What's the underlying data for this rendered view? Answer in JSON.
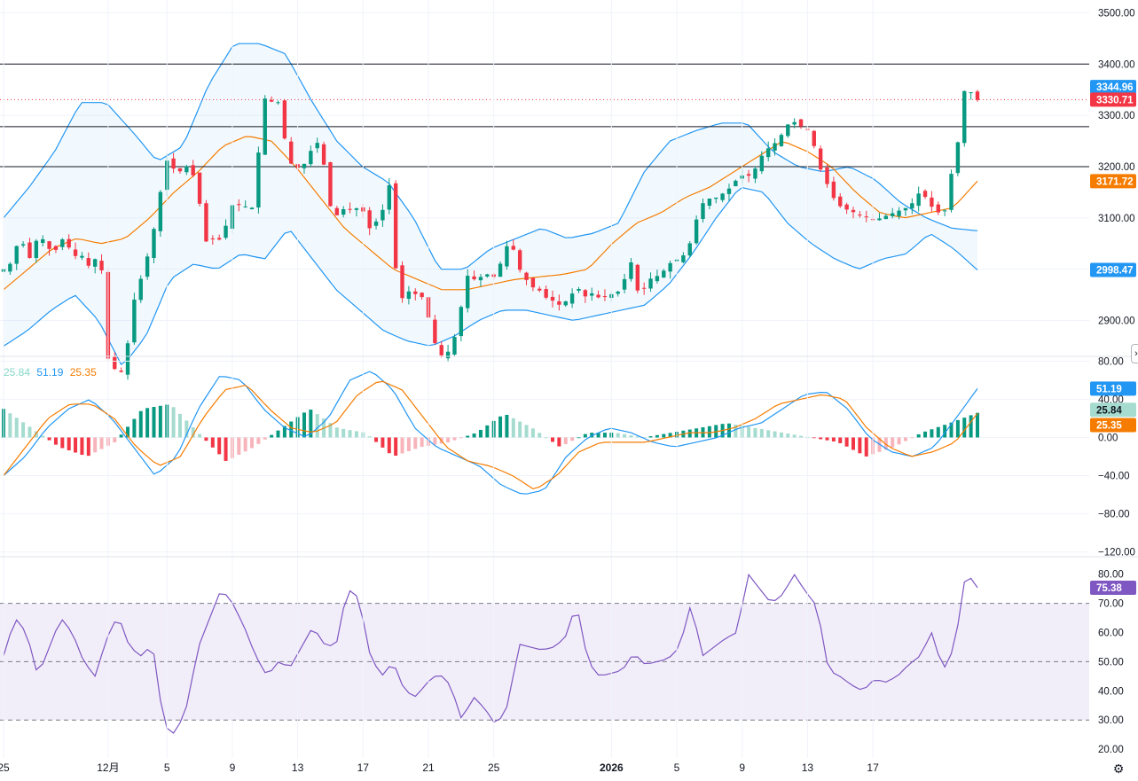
{
  "chart_data": [
    {
      "id": "price",
      "type": "candlestick",
      "ylim": [
        2830,
        3525
      ],
      "y_ticks": [
        "3500.00",
        "3400.00",
        "3300.00",
        "3200.00",
        "3100.00",
        "3000.00",
        "2900.00"
      ],
      "horizontal_lines": [
        3400,
        3278,
        3200
      ],
      "last_price": 3330.71,
      "last_price_label": "3330.71",
      "bollinger": {
        "upper_label": "3344.96",
        "middle_label": "3171.72",
        "lower_label": "2998.47",
        "upper_value": 3344.96,
        "middle_value": 3171.72,
        "lower_value": 2998.47
      },
      "x_tick_labels": [
        {
          "label": "25",
          "index": 0
        },
        {
          "label": "12月",
          "index": 16
        },
        {
          "label": "5",
          "index": 25
        },
        {
          "label": "9",
          "index": 35
        },
        {
          "label": "13",
          "index": 45
        },
        {
          "label": "17",
          "index": 55
        },
        {
          "label": "21",
          "index": 65
        },
        {
          "label": "25",
          "index": 75
        },
        {
          "label": "2026",
          "index": 93
        },
        {
          "label": "5",
          "index": 103
        },
        {
          "label": "9",
          "index": 113
        },
        {
          "label": "13",
          "index": 123
        },
        {
          "label": "17",
          "index": 133
        }
      ],
      "close_path": [
        3000,
        3010,
        3045,
        3050,
        3020,
        3055,
        3060,
        3040,
        3035,
        3060,
        3045,
        3025,
        3030,
        3005,
        3015,
        3040,
        2830,
        2810,
        2790,
        2830,
        2930,
        2970,
        3010,
        3060,
        3120,
        3215,
        3205,
        3180,
        3210,
        3185,
        3180,
        3050,
        3060,
        3060,
        3055,
        3120,
        3130,
        3120,
        3125,
        3115,
        3330,
        3335,
        3320,
        3330,
        3200,
        3210,
        3190,
        3215,
        3240,
        3250,
        3180,
        3095,
        3110,
        3120,
        3115,
        3120,
        3110,
        3070,
        3100,
        3120,
        3175,
        2960,
        2940,
        2960,
        2950,
        2945,
        2900,
        2850,
        2830,
        2840,
        2870,
        2930,
        2990,
        2980,
        2985,
        2990,
        2985,
        3010,
        3045,
        3040,
        3000,
        2980,
        2965,
        2960,
        2945,
        2940,
        2930,
        2935,
        2950,
        2965,
        2945,
        2955,
        2945,
        2945,
        2950,
        2955,
        2960,
        3035,
        2960,
        2955,
        2980,
        2985,
        2990,
        3010,
        3015,
        3025,
        3030,
        3080,
        3120,
        3140,
        3135,
        3145,
        3150,
        3165,
        3180,
        3185,
        3180,
        3210,
        3230,
        3240,
        3250,
        3270,
        3290,
        3285,
        3275,
        3270,
        3225,
        3180,
        3160,
        3130,
        3120,
        3115,
        3110,
        3105,
        3100,
        3095,
        3100,
        3105,
        3110,
        3115,
        3120,
        3130,
        3150,
        3140,
        3120,
        3110,
        3115,
        3190,
        3250,
        3350,
        3345,
        3330
      ],
      "bb_upper_path": [
        3100,
        3160,
        3230,
        3325,
        3325,
        3270,
        3210,
        3240,
        3360,
        3440,
        3440,
        3420,
        3330,
        3250,
        3200,
        3170,
        3100,
        3000,
        3000,
        3040,
        3060,
        3080,
        3060,
        3070,
        3090,
        3190,
        3250,
        3270,
        3285,
        3285,
        3230,
        3200,
        3190,
        3200,
        3175,
        3130,
        3100,
        3080,
        3075
      ],
      "bb_middle_path": [
        2960,
        3000,
        3040,
        3060,
        3050,
        3060,
        3100,
        3150,
        3190,
        3240,
        3260,
        3250,
        3200,
        3140,
        3080,
        3040,
        3000,
        2980,
        2960,
        2960,
        2970,
        2980,
        2985,
        2990,
        3000,
        3050,
        3090,
        3110,
        3140,
        3160,
        3190,
        3220,
        3250,
        3230,
        3200,
        3150,
        3110,
        3100,
        3110,
        3120,
        3171.72
      ],
      "bb_lower_path": [
        2850,
        2880,
        2920,
        2950,
        2900,
        2810,
        2870,
        2980,
        3010,
        3000,
        3030,
        3020,
        3080,
        3020,
        2960,
        2920,
        2880,
        2860,
        2850,
        2870,
        2900,
        2920,
        2920,
        2910,
        2900,
        2910,
        2920,
        2930,
        2970,
        3030,
        3100,
        3160,
        3150,
        3090,
        3050,
        3020,
        3000,
        3020,
        3030,
        3070,
        3040,
        2998.47
      ]
    },
    {
      "id": "macd",
      "type": "macd",
      "ylim": [
        -125,
        85
      ],
      "y_ticks": [
        "80.00",
        "40.00",
        "0.00",
        "−40.00",
        "−80.00",
        "−120.00"
      ],
      "legend_values": [
        "25.84",
        "51.19",
        "25.35"
      ],
      "hist_label": "25.84",
      "macd_label": "51.19",
      "signal_label": "25.35",
      "macd_path": [
        -40,
        -20,
        10,
        30,
        40,
        20,
        -10,
        -40,
        -20,
        30,
        65,
        60,
        30,
        10,
        0,
        20,
        60,
        70,
        50,
        10,
        -10,
        -20,
        -30,
        -50,
        -60,
        -55,
        -20,
        0,
        10,
        5,
        -5,
        -10,
        -5,
        0,
        10,
        15,
        30,
        45,
        48,
        30,
        0,
        -15,
        -20,
        -10,
        20,
        51.19
      ],
      "signal_path": [
        -40,
        -10,
        20,
        35,
        35,
        20,
        -10,
        -30,
        -20,
        20,
        50,
        55,
        30,
        10,
        5,
        15,
        45,
        60,
        50,
        20,
        -10,
        -25,
        -30,
        -40,
        -55,
        -40,
        -15,
        -5,
        -5,
        -5,
        0,
        5,
        5,
        10,
        20,
        35,
        40,
        45,
        40,
        10,
        -10,
        -20,
        -15,
        -5,
        25.35
      ],
      "hist_path": [
        30,
        10,
        -10,
        -20,
        -5,
        30,
        35,
        5,
        -25,
        -10,
        10,
        30,
        10,
        5,
        -20,
        -10,
        -5,
        5,
        25,
        10,
        -10,
        5,
        5,
        0,
        5,
        10,
        15,
        10,
        5,
        0,
        -5,
        -20,
        -10,
        5,
        15,
        25.84
      ]
    },
    {
      "id": "rsi",
      "type": "line",
      "ylim": [
        17,
        86
      ],
      "y_ticks": [
        "80.00",
        "70.00",
        "60.00",
        "50.00",
        "40.00",
        "30.00",
        "20.00"
      ],
      "band": [
        30,
        70
      ],
      "midline": 50,
      "last_label": "75.38",
      "last_value": 75.38,
      "values": [
        52,
        65,
        60,
        45,
        55,
        65,
        60,
        50,
        45,
        58,
        66,
        55,
        52,
        56,
        28,
        25,
        35,
        55,
        65,
        75,
        70,
        62,
        52,
        45,
        50,
        48,
        55,
        62,
        56,
        55,
        75,
        72,
        52,
        45,
        50,
        40,
        38,
        43,
        46,
        42,
        30,
        38,
        34,
        28,
        35,
        56,
        55,
        54,
        55,
        58,
        70,
        50,
        45,
        46,
        47,
        53,
        49,
        50,
        51,
        55,
        70,
        52,
        55,
        58,
        60,
        80,
        75,
        70,
        73,
        80,
        74,
        69,
        47,
        45,
        42,
        40,
        44,
        43,
        45,
        49,
        52,
        60,
        47,
        55,
        81,
        75.38
      ]
    }
  ]
}
